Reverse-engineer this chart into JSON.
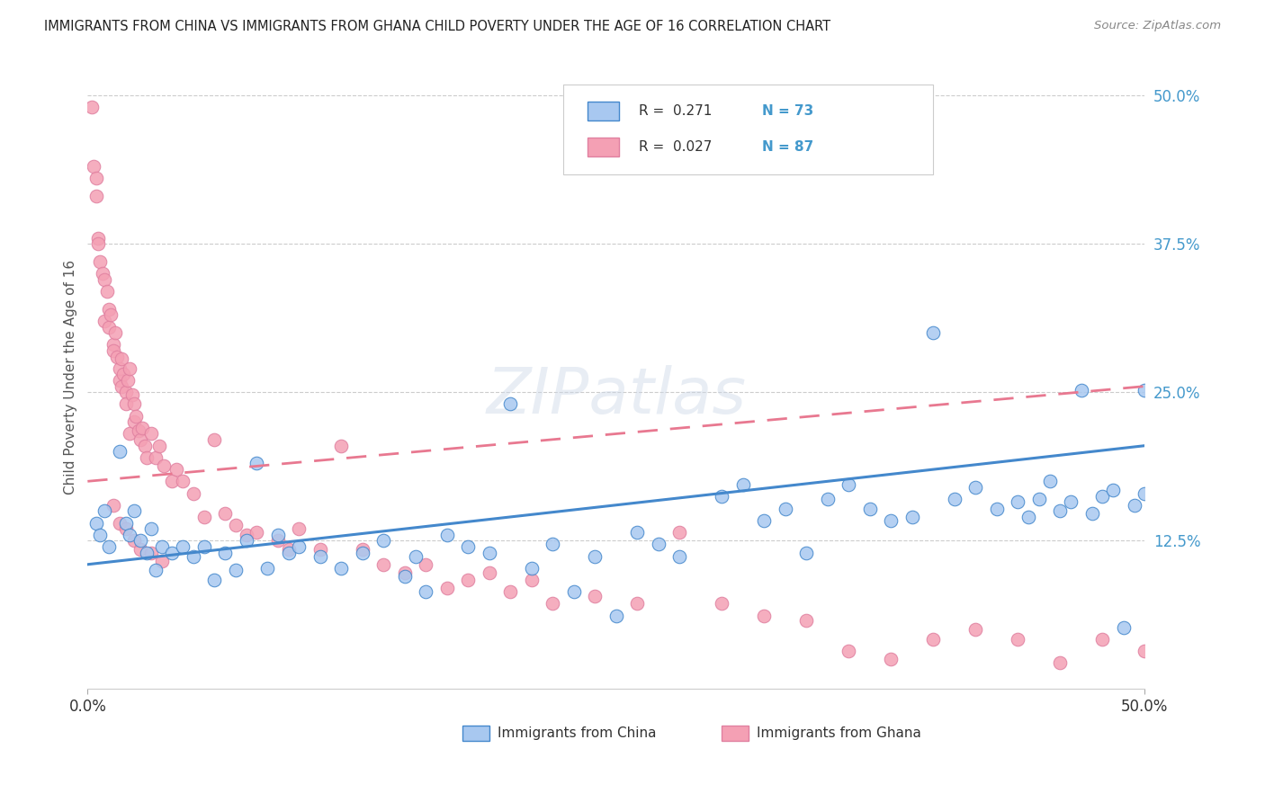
{
  "title": "IMMIGRANTS FROM CHINA VS IMMIGRANTS FROM GHANA CHILD POVERTY UNDER THE AGE OF 16 CORRELATION CHART",
  "source": "Source: ZipAtlas.com",
  "ylabel": "Child Poverty Under the Age of 16",
  "color_china": "#a8c8f0",
  "color_ghana": "#f4a0b4",
  "color_china_line": "#4488cc",
  "color_ghana_line": "#e87890",
  "watermark": "ZIPatlas",
  "xlim": [
    0.0,
    0.5
  ],
  "ylim": [
    0.0,
    0.525
  ],
  "ytick_values": [
    0.125,
    0.25,
    0.375,
    0.5
  ],
  "ytick_labels": [
    "12.5%",
    "25.0%",
    "37.5%",
    "50.0%"
  ],
  "china_x": [
    0.004,
    0.006,
    0.008,
    0.01,
    0.015,
    0.018,
    0.02,
    0.022,
    0.025,
    0.028,
    0.03,
    0.032,
    0.035,
    0.04,
    0.045,
    0.05,
    0.055,
    0.06,
    0.065,
    0.07,
    0.075,
    0.08,
    0.085,
    0.09,
    0.095,
    0.1,
    0.11,
    0.12,
    0.13,
    0.14,
    0.15,
    0.155,
    0.16,
    0.17,
    0.18,
    0.19,
    0.2,
    0.21,
    0.22,
    0.23,
    0.24,
    0.25,
    0.26,
    0.27,
    0.28,
    0.3,
    0.31,
    0.32,
    0.33,
    0.34,
    0.35,
    0.36,
    0.37,
    0.38,
    0.39,
    0.4,
    0.41,
    0.42,
    0.43,
    0.44,
    0.45,
    0.46,
    0.47,
    0.48,
    0.49,
    0.5,
    0.5,
    0.495,
    0.485,
    0.475,
    0.465,
    0.455,
    0.445
  ],
  "china_y": [
    0.14,
    0.13,
    0.15,
    0.12,
    0.2,
    0.14,
    0.13,
    0.15,
    0.125,
    0.115,
    0.135,
    0.1,
    0.12,
    0.115,
    0.12,
    0.112,
    0.12,
    0.092,
    0.115,
    0.1,
    0.125,
    0.19,
    0.102,
    0.13,
    0.115,
    0.12,
    0.112,
    0.102,
    0.115,
    0.125,
    0.095,
    0.112,
    0.082,
    0.13,
    0.12,
    0.115,
    0.24,
    0.102,
    0.122,
    0.082,
    0.112,
    0.062,
    0.132,
    0.122,
    0.112,
    0.162,
    0.172,
    0.142,
    0.152,
    0.115,
    0.16,
    0.172,
    0.152,
    0.142,
    0.145,
    0.3,
    0.16,
    0.17,
    0.152,
    0.158,
    0.16,
    0.15,
    0.252,
    0.162,
    0.052,
    0.252,
    0.165,
    0.155,
    0.168,
    0.148,
    0.158,
    0.175,
    0.145
  ],
  "ghana_x": [
    0.002,
    0.003,
    0.004,
    0.004,
    0.005,
    0.005,
    0.006,
    0.007,
    0.008,
    0.008,
    0.009,
    0.01,
    0.01,
    0.011,
    0.012,
    0.012,
    0.013,
    0.014,
    0.015,
    0.015,
    0.016,
    0.016,
    0.017,
    0.018,
    0.018,
    0.019,
    0.02,
    0.02,
    0.021,
    0.022,
    0.022,
    0.023,
    0.024,
    0.025,
    0.026,
    0.027,
    0.028,
    0.03,
    0.032,
    0.034,
    0.036,
    0.04,
    0.042,
    0.045,
    0.05,
    0.055,
    0.06,
    0.065,
    0.07,
    0.075,
    0.08,
    0.09,
    0.095,
    0.1,
    0.11,
    0.12,
    0.13,
    0.14,
    0.15,
    0.16,
    0.17,
    0.18,
    0.19,
    0.2,
    0.21,
    0.22,
    0.24,
    0.26,
    0.28,
    0.3,
    0.32,
    0.34,
    0.36,
    0.38,
    0.4,
    0.42,
    0.44,
    0.46,
    0.48,
    0.5,
    0.012,
    0.015,
    0.018,
    0.022,
    0.025,
    0.03,
    0.035
  ],
  "ghana_y": [
    0.49,
    0.44,
    0.43,
    0.415,
    0.38,
    0.375,
    0.36,
    0.35,
    0.345,
    0.31,
    0.335,
    0.305,
    0.32,
    0.315,
    0.29,
    0.285,
    0.3,
    0.28,
    0.26,
    0.27,
    0.278,
    0.255,
    0.265,
    0.25,
    0.24,
    0.26,
    0.27,
    0.215,
    0.248,
    0.24,
    0.225,
    0.23,
    0.218,
    0.21,
    0.22,
    0.205,
    0.195,
    0.215,
    0.195,
    0.205,
    0.188,
    0.175,
    0.185,
    0.175,
    0.165,
    0.145,
    0.21,
    0.148,
    0.138,
    0.13,
    0.132,
    0.125,
    0.118,
    0.135,
    0.118,
    0.205,
    0.118,
    0.105,
    0.098,
    0.105,
    0.085,
    0.092,
    0.098,
    0.082,
    0.092,
    0.072,
    0.078,
    0.072,
    0.132,
    0.072,
    0.062,
    0.058,
    0.032,
    0.025,
    0.042,
    0.05,
    0.042,
    0.022,
    0.042,
    0.032,
    0.155,
    0.14,
    0.135,
    0.125,
    0.118,
    0.115,
    0.108
  ]
}
